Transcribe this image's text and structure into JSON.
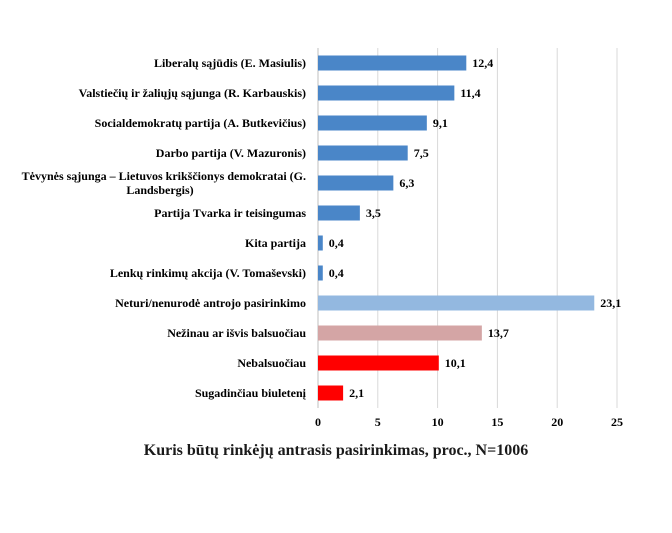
{
  "chart_data": {
    "type": "bar",
    "orientation": "horizontal",
    "title": "Kuris būtų rinkėjų antrasis pasirinkimas, proc., N=1006",
    "xlim": [
      0,
      25
    ],
    "xticks": [
      "0",
      "5",
      "10",
      "15",
      "20",
      "25"
    ],
    "grid": true,
    "legend": "none",
    "categories": [
      [
        "Liberalų sąjūdis (E. Masiulis)"
      ],
      [
        "Valstiečių ir žaliųjų sąjunga (R. Karbauskis)"
      ],
      [
        "Socialdemokratų partija (A. Butkevičius)"
      ],
      [
        "Darbo partija (V. Mazuronis)"
      ],
      [
        "Tėvynės sąjunga – Lietuvos krikščionys demokratai (G.",
        "Landsbergis)"
      ],
      [
        "Partija Tvarka ir teisingumas"
      ],
      [
        "Kita partija"
      ],
      [
        "Lenkų rinkimų akcija (V. Tomaševski)"
      ],
      [
        "Neturi/nenurodė antrojo pasirinkimo"
      ],
      [
        "Nežinau ar išvis balsuočiau"
      ],
      [
        "Nebalsuočiau"
      ],
      [
        "Sugadinčiau biuletenį"
      ]
    ],
    "values": [
      12.4,
      11.4,
      9.1,
      7.5,
      6.3,
      3.5,
      0.4,
      0.4,
      23.1,
      13.7,
      10.1,
      2.1
    ],
    "value_labels": [
      "12,4",
      "11,4",
      "9,1",
      "7,5",
      "6,3",
      "3,5",
      "0,4",
      "0,4",
      "23,1",
      "13,7",
      "10,1",
      "2,1"
    ],
    "colors": [
      "#4a86c8",
      "#4a86c8",
      "#4a86c8",
      "#4a86c8",
      "#4a86c8",
      "#4a86c8",
      "#4a86c8",
      "#4a86c8",
      "#93b8e0",
      "#d4a5a5",
      "#ff0000",
      "#ff0000"
    ]
  }
}
